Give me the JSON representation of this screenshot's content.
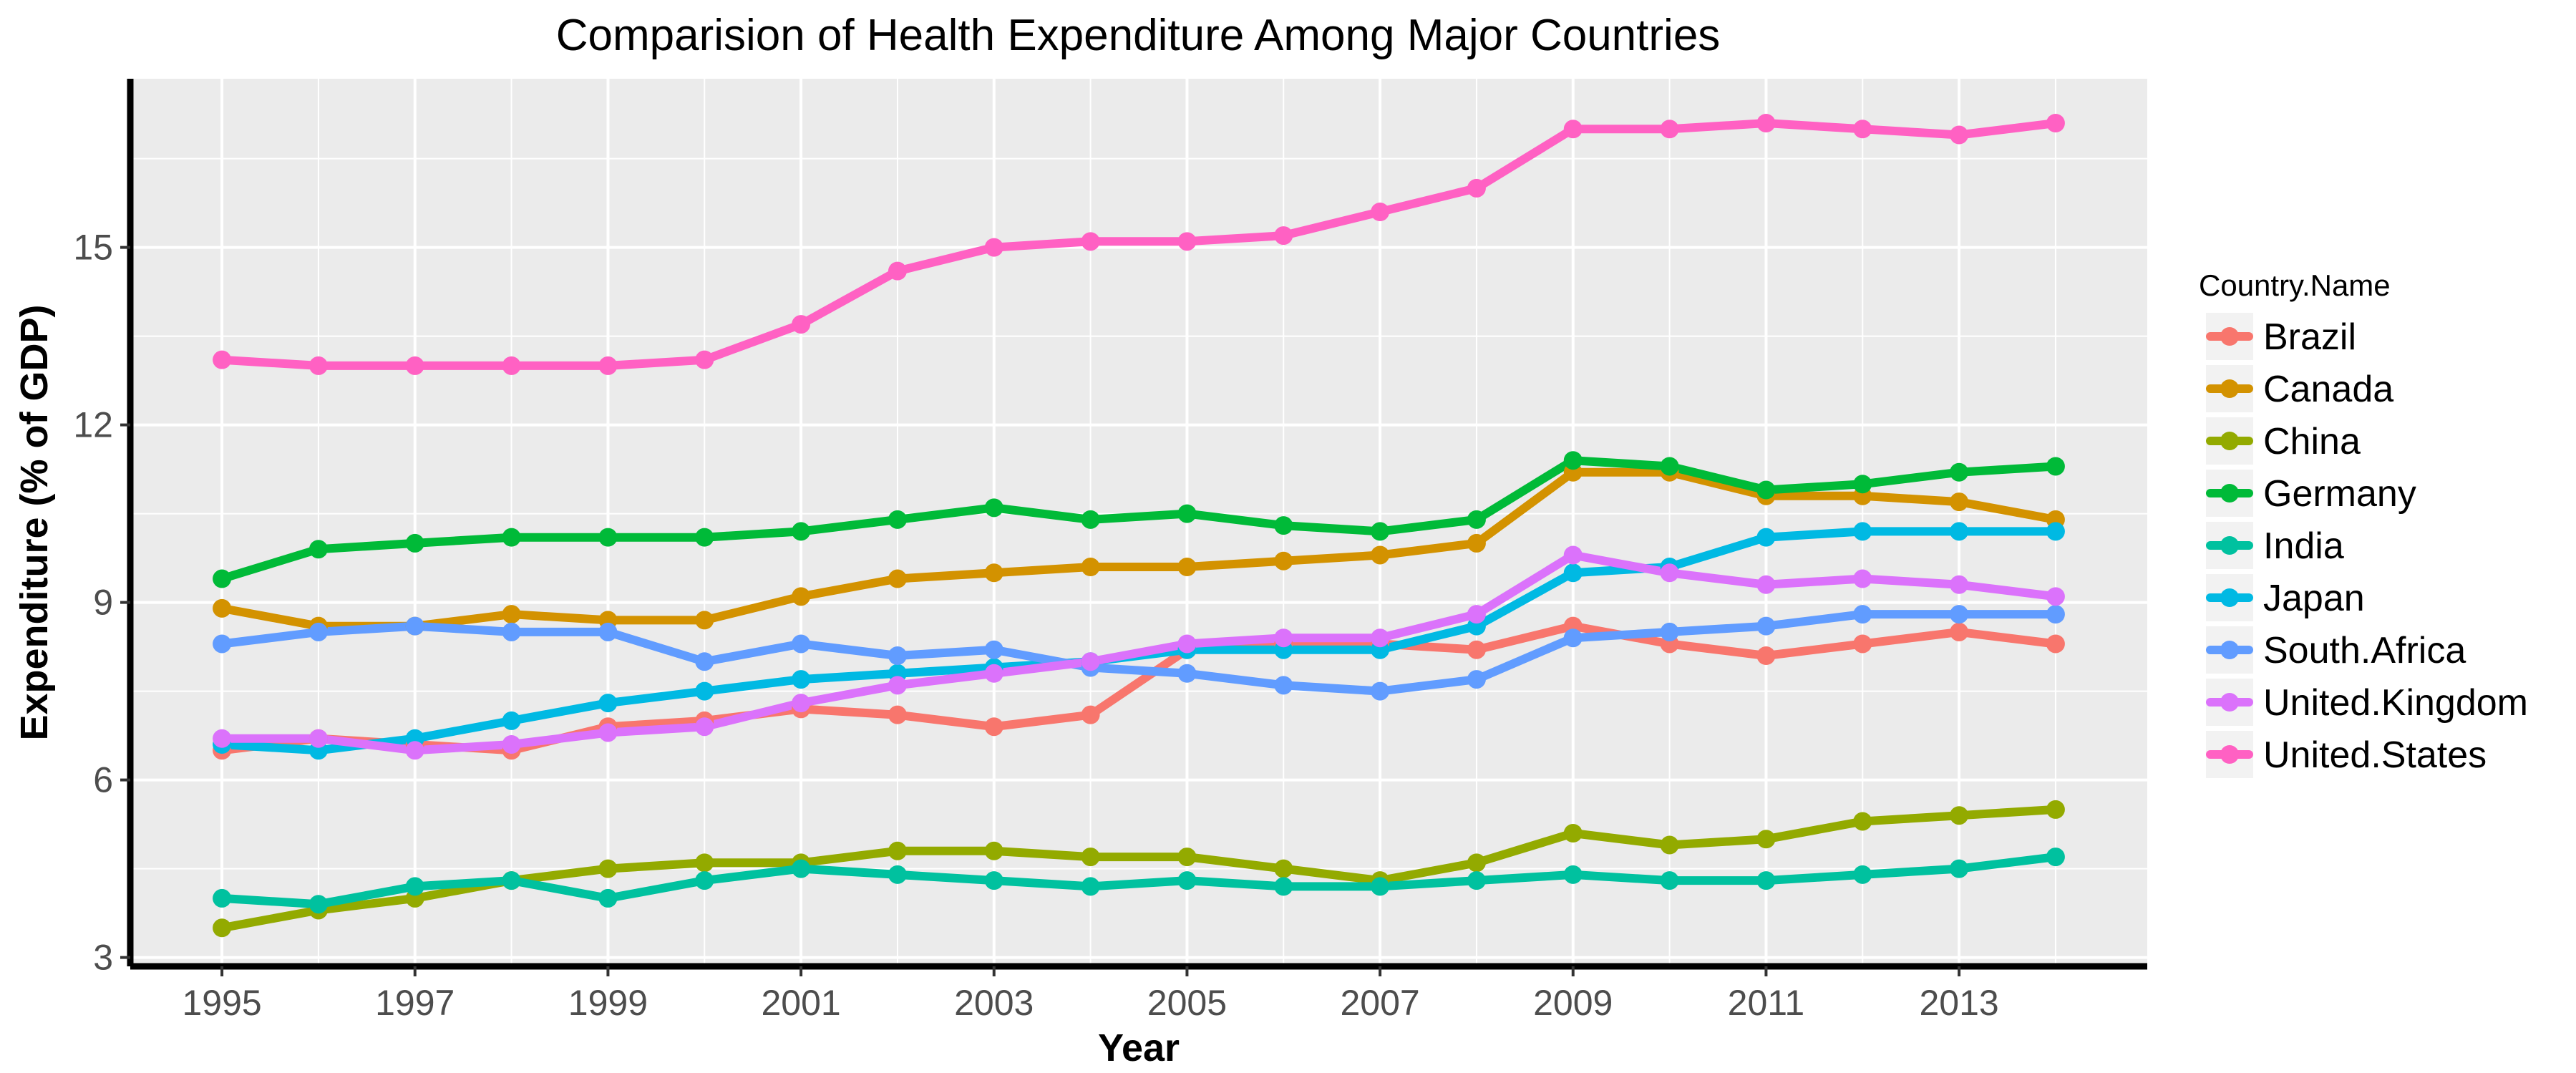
{
  "chart_data": {
    "type": "line",
    "title": "Comparision of Health Expenditure Among Major Countries",
    "xlabel": "Year",
    "ylabel": "Expenditure (% of GDP)",
    "x": [
      1995,
      1996,
      1997,
      1998,
      1999,
      2000,
      2001,
      2002,
      2003,
      2004,
      2005,
      2006,
      2007,
      2008,
      2009,
      2010,
      2011,
      2012,
      2013,
      2014
    ],
    "x_ticks": [
      "1995",
      "1997",
      "1999",
      "2001",
      "2003",
      "2005",
      "2007",
      "2009",
      "2011",
      "2013"
    ],
    "y_ticks": [
      "3",
      "6",
      "9",
      "12",
      "15"
    ],
    "xlim": [
      1994.05,
      2014.95
    ],
    "ylim": [
      2.85,
      17.85
    ],
    "grid": true,
    "legend": {
      "title": "Country.Name",
      "position": "right"
    },
    "series": [
      {
        "name": "Brazil",
        "color": "#F8766D",
        "values": [
          6.5,
          6.7,
          6.6,
          6.5,
          6.9,
          7.0,
          7.2,
          7.1,
          6.9,
          7.1,
          8.2,
          8.3,
          8.3,
          8.2,
          8.6,
          8.3,
          8.1,
          8.3,
          8.5,
          8.3
        ]
      },
      {
        "name": "Canada",
        "color": "#D39200",
        "values": [
          8.9,
          8.6,
          8.6,
          8.8,
          8.7,
          8.7,
          9.1,
          9.4,
          9.5,
          9.6,
          9.6,
          9.7,
          9.8,
          10.0,
          11.2,
          11.2,
          10.8,
          10.8,
          10.7,
          10.4
        ]
      },
      {
        "name": "China",
        "color": "#93AA00",
        "values": [
          3.5,
          3.8,
          4.0,
          4.3,
          4.5,
          4.6,
          4.6,
          4.8,
          4.8,
          4.7,
          4.7,
          4.5,
          4.3,
          4.6,
          5.1,
          4.9,
          5.0,
          5.3,
          5.4,
          5.5
        ]
      },
      {
        "name": "Germany",
        "color": "#00BA38",
        "values": [
          9.4,
          9.9,
          10.0,
          10.1,
          10.1,
          10.1,
          10.2,
          10.4,
          10.6,
          10.4,
          10.5,
          10.3,
          10.2,
          10.4,
          11.4,
          11.3,
          10.9,
          11.0,
          11.2,
          11.3
        ]
      },
      {
        "name": "India",
        "color": "#00C19F",
        "values": [
          4.0,
          3.9,
          4.2,
          4.3,
          4.0,
          4.3,
          4.5,
          4.4,
          4.3,
          4.2,
          4.3,
          4.2,
          4.2,
          4.3,
          4.4,
          4.3,
          4.3,
          4.4,
          4.5,
          4.7
        ]
      },
      {
        "name": "Japan",
        "color": "#00B9E3",
        "values": [
          6.6,
          6.5,
          6.7,
          7.0,
          7.3,
          7.5,
          7.7,
          7.8,
          7.9,
          8.0,
          8.2,
          8.2,
          8.2,
          8.6,
          9.5,
          9.6,
          10.1,
          10.2,
          10.2,
          10.2
        ]
      },
      {
        "name": "South.Africa",
        "color": "#619CFF",
        "values": [
          8.3,
          8.5,
          8.6,
          8.5,
          8.5,
          8.0,
          8.3,
          8.1,
          8.2,
          7.9,
          7.8,
          7.6,
          7.5,
          7.7,
          8.4,
          8.5,
          8.6,
          8.8,
          8.8,
          8.8
        ]
      },
      {
        "name": "United.Kingdom",
        "color": "#DB72FB",
        "values": [
          6.7,
          6.7,
          6.5,
          6.6,
          6.8,
          6.9,
          7.3,
          7.6,
          7.8,
          8.0,
          8.3,
          8.4,
          8.4,
          8.8,
          9.8,
          9.5,
          9.3,
          9.4,
          9.3,
          9.1
        ]
      },
      {
        "name": "United.States",
        "color": "#FF61C3",
        "values": [
          13.1,
          13.0,
          13.0,
          13.0,
          13.0,
          13.1,
          13.7,
          14.6,
          15.0,
          15.1,
          15.1,
          15.2,
          15.6,
          16.0,
          17.0,
          17.0,
          17.1,
          17.0,
          16.9,
          17.1
        ]
      }
    ]
  }
}
